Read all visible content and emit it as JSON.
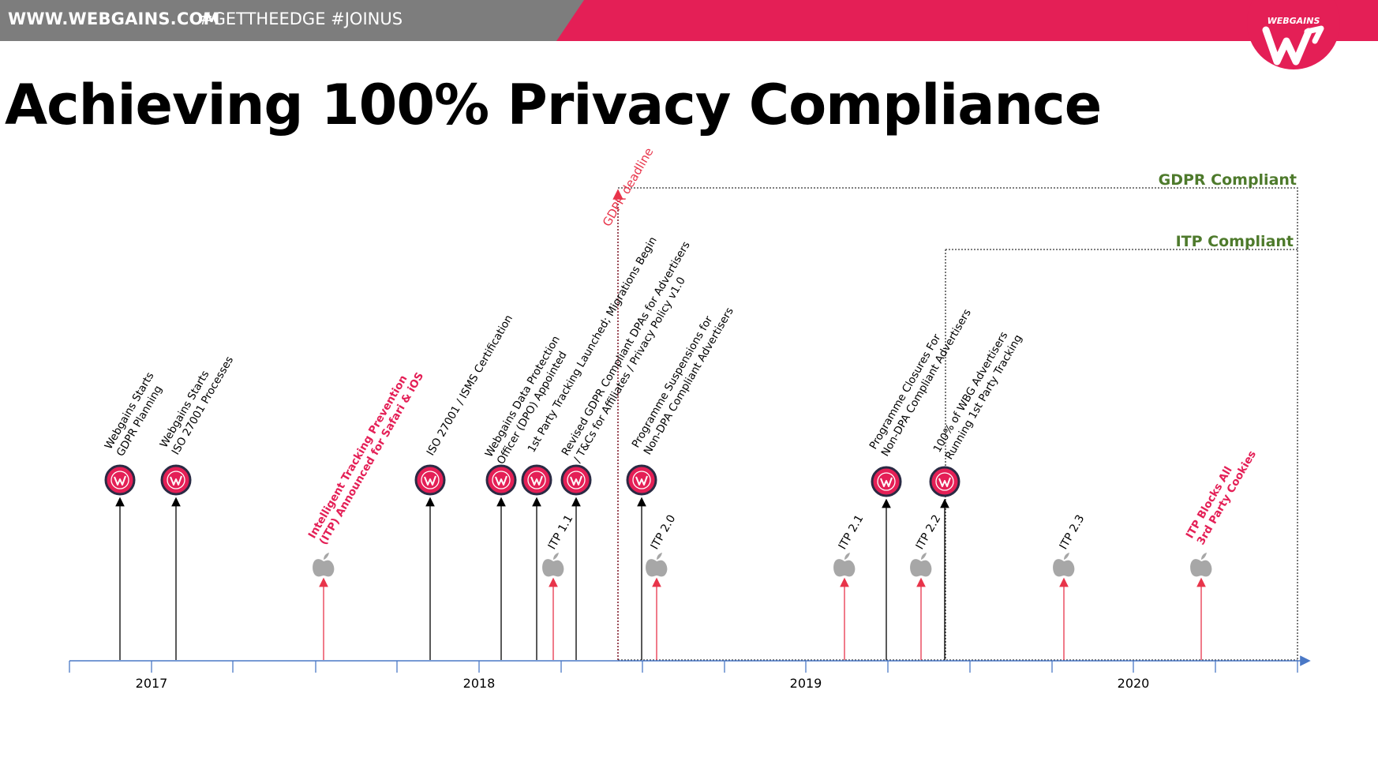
{
  "header": {
    "site_url": "WWW.WEBGAINS.COM",
    "hashtags": "#GETTHEEDGE #JOINUS",
    "logo_text": "WEBGAINS"
  },
  "title": "Achieving 100% Privacy Compliance",
  "timeline": {
    "years": [
      "2017",
      "2018",
      "2019",
      "2020"
    ],
    "gdpr_deadline_label": "GDPR deadline",
    "gdpr_compliant_label": "GDPR Compliant",
    "itp_compliant_label": "ITP Compliant",
    "webgains_events": [
      {
        "lines": [
          "Webgains Starts",
          "GDPR Planning"
        ]
      },
      {
        "lines": [
          "Webgains Starts",
          "ISO 27001 Processes"
        ]
      },
      {
        "lines": [
          "ISO 27001 / ISMS Certification"
        ]
      },
      {
        "lines": [
          "Webgains Data Protection",
          "Officer (DPO) Appointed"
        ]
      },
      {
        "lines": [
          "1st Party Tracking Launched; Migrations Begin"
        ]
      },
      {
        "lines": [
          "Revised GDPR Compliant DPAs for Advertisers",
          "/ T&Cs for Affiliates / Privacy Policy v1.0"
        ]
      },
      {
        "lines": [
          "Programme Suspensions for",
          "Non-DPA Compliant Advertisers"
        ]
      },
      {
        "lines": [
          "Programme Closures For",
          "Non-DPA Compliant Advertisers"
        ]
      },
      {
        "lines": [
          "100% of WBG Advertisers",
          "Running 1st Party Tracking"
        ]
      }
    ],
    "apple_events": [
      {
        "lines": [
          "Intelligent Tracking Prevention",
          "(ITP) Announced for Safari & iOS"
        ],
        "highlight": true
      },
      {
        "lines": [
          "ITP 1.1"
        ],
        "highlight": false
      },
      {
        "lines": [
          "ITP 2.0"
        ],
        "highlight": false
      },
      {
        "lines": [
          "ITP 2.1"
        ],
        "highlight": false
      },
      {
        "lines": [
          "ITP 2.2"
        ],
        "highlight": false
      },
      {
        "lines": [
          "ITP 2.3"
        ],
        "highlight": false
      },
      {
        "lines": [
          "ITP Blocks All",
          "3rd Party Cookies"
        ],
        "highlight": true
      }
    ]
  },
  "colors": {
    "brand_red": "#e41f56",
    "header_grey": "#7d7d7d",
    "compliant_green": "#4e7a2c",
    "axis_blue": "#4a78c6",
    "apple_grey": "#a7a7a7",
    "deadline_red": "#e8344a"
  }
}
